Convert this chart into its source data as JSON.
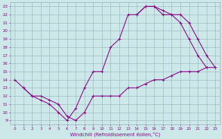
{
  "xlabel": "Windchill (Refroidissement éolien,°C)",
  "bg_color": "#cce8e8",
  "line_color": "#880088",
  "grid_color": "#99aabb",
  "xlim": [
    -0.5,
    23.5
  ],
  "ylim": [
    8.5,
    23.5
  ],
  "xticks": [
    0,
    1,
    2,
    3,
    4,
    5,
    6,
    7,
    8,
    9,
    10,
    11,
    12,
    13,
    14,
    15,
    16,
    17,
    18,
    19,
    20,
    21,
    22,
    23
  ],
  "yticks": [
    9,
    10,
    11,
    12,
    13,
    14,
    15,
    16,
    17,
    18,
    19,
    20,
    21,
    22,
    23
  ],
  "curve1_x": [
    0,
    1,
    2,
    3,
    4,
    5,
    6,
    7,
    8,
    9,
    10,
    11,
    12,
    13,
    14,
    15,
    16,
    17,
    18,
    19,
    20,
    21,
    22
  ],
  "curve1_y": [
    14,
    13,
    12,
    11.5,
    11,
    10,
    9,
    10.5,
    13,
    15,
    15,
    18,
    19,
    22,
    22,
    23,
    23,
    22,
    22,
    21,
    19,
    17,
    15.5
  ],
  "curve2_x": [
    1,
    2,
    3,
    4,
    5,
    6,
    7,
    8,
    9,
    10,
    11,
    12,
    13,
    14,
    15,
    16,
    17,
    18,
    19,
    20,
    21,
    22,
    23
  ],
  "curve2_y": [
    13,
    12,
    12,
    11.5,
    11,
    9.5,
    9,
    10,
    12,
    12,
    12,
    12,
    13,
    13,
    13.5,
    14,
    14,
    14.5,
    15,
    15,
    15,
    15.5,
    15.5
  ],
  "curve3_x": [
    14,
    15,
    16,
    17,
    18,
    19,
    20,
    21,
    22,
    23
  ],
  "curve3_y": [
    22,
    23,
    23,
    22.5,
    22,
    22,
    21,
    19,
    17,
    15.5
  ],
  "markersize": 2.5,
  "linewidth": 0.8
}
